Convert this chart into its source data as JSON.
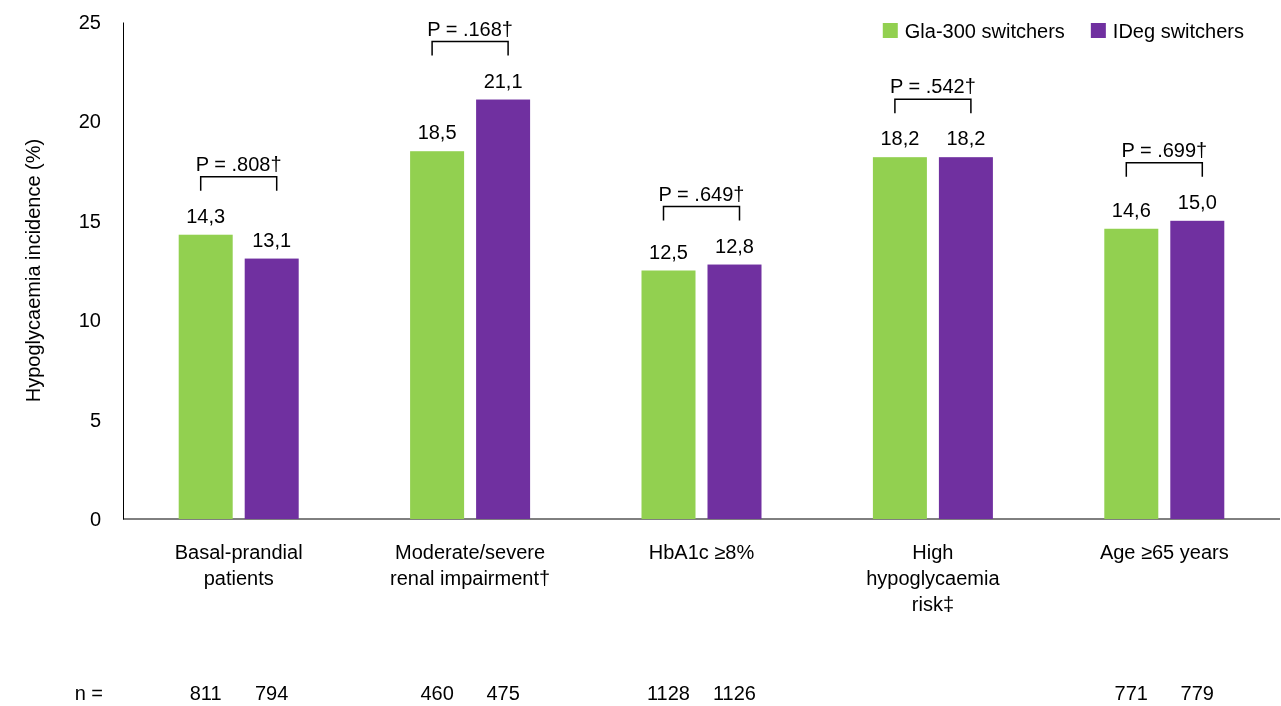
{
  "chart_data": {
    "type": "bar",
    "categories": [
      "Basal-prandial\npatients",
      "Moderate/severe\nrenal impairment†",
      "HbA1c ≥8%",
      "High\nhypoglycaemia\nrisk‡",
      "Age ≥65 years"
    ],
    "series": [
      {
        "name": "Gla-300 switchers",
        "color": "#92d050",
        "values": [
          14.3,
          18.5,
          12.5,
          18.2,
          14.6
        ],
        "value_labels": [
          "14,3",
          "18,5",
          "12,5",
          "18,2",
          "14,6"
        ]
      },
      {
        "name": "IDeg switchers",
        "color": "#7030a0",
        "values": [
          13.1,
          21.1,
          12.8,
          18.2,
          15.0
        ],
        "value_labels": [
          "13,1",
          "21,1",
          "12,8",
          "18,2",
          "15,0"
        ]
      }
    ],
    "ylabel": "Hypoglycaemia incidence (%)",
    "ylim": [
      0,
      25
    ],
    "yticks": [
      0,
      5,
      10,
      15,
      20,
      25
    ],
    "grid": false,
    "legend": "top right",
    "annotations": [
      "P = .808†",
      "P = .168†",
      "P = .649†",
      "P = .542†",
      "P = .699†",
      "n =",
      "811",
      "794",
      "460",
      "475",
      "1128",
      "1126",
      "771",
      "779"
    ]
  }
}
